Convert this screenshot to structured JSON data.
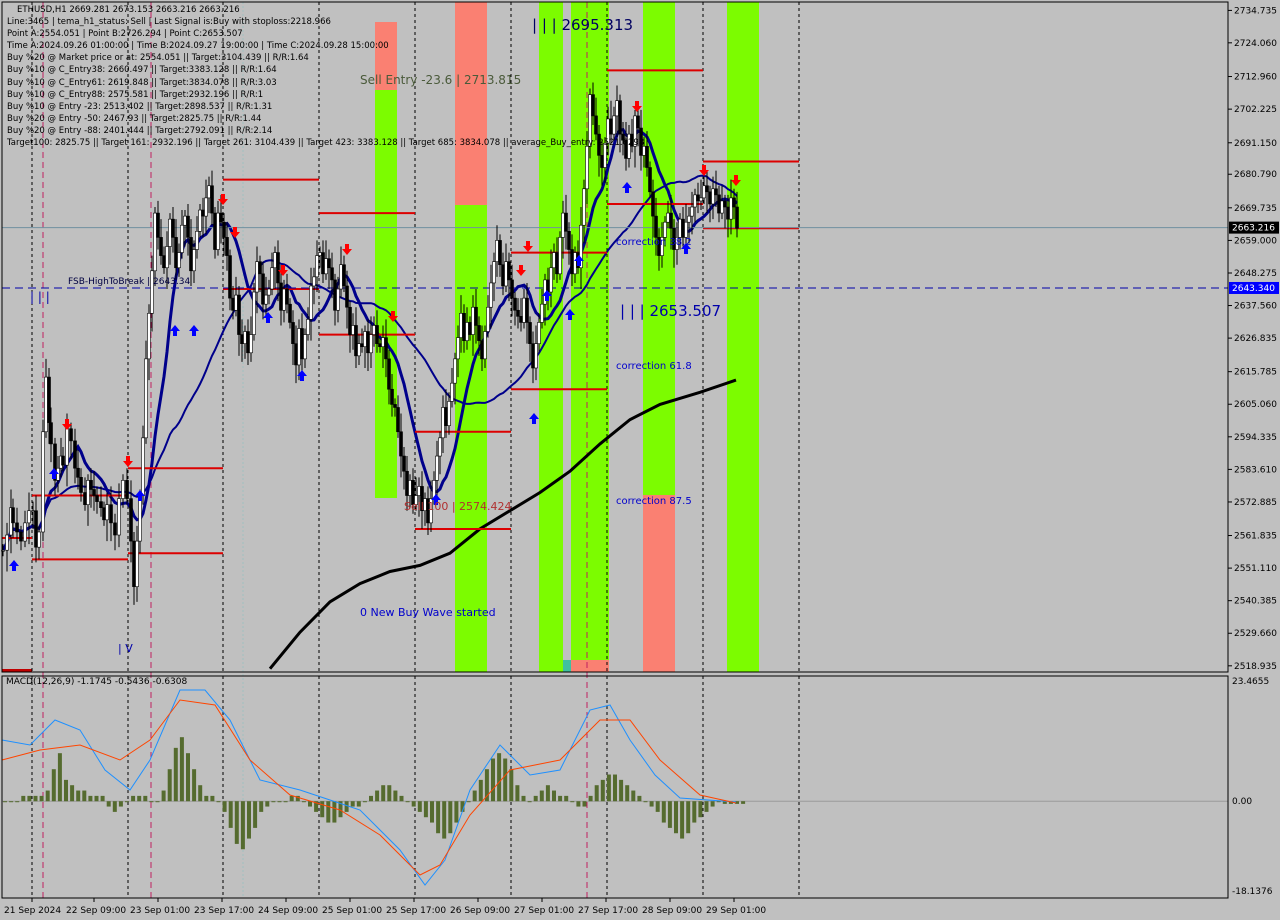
{
  "header": {
    "symbol_line": "ETHUSD,H1  2669.281 2673.153 2663.216 2663.216",
    "info_lines": [
      "Line:3465 | tema_h1_status: Sell | Last Signal is:Buy with stoploss:2218.966",
      "Point A:2554.051 | Point B:2726.294 | Point C:2653.507",
      "Time A:2024.09.26 01:00:00 | Time B:2024.09.27 19:00:00 | Time C:2024.09.28 15:00:00",
      "Buy %20 @ Market price or at: 2554.051 || Target:3104.439 || R/R:1.64",
      "Buy %10 @ C_Entry38: 2660.497 || Target:3383.128 || R/R:1.64",
      "Buy %10 @ C_Entry61: 2619.848 || Target:3834.078 || R/R:3.03",
      "Buy %10 @ C_Entry88: 2575.581 || Target:2932.196 || R/R:1",
      "Buy %10 @ Entry -23: 2513.402 || Target:2898.537 || R/R:1.31",
      "Buy %20 @ Entry -50: 2467.93 || Target:2825.75 || R/R:1.44",
      "Buy %20 @ Entry -88: 2401.444 || Target:2792.091 || R/R:2.14",
      "Target100: 2825.75 || Target 161: 2932.196 || Target 261: 3104.439 || Target 423: 3383.128 || Target 685: 3834.078 || average_Buy_entry: 2521.6298"
    ]
  },
  "labels": {
    "peak": "| | | 2695.313",
    "sell_entry": "Sell Entry -23.6 | 2713.815",
    "point_c": "| | | 2653.507",
    "corr382": "correction 38.2",
    "corr618": "correction 61.8",
    "corr875": "correction 87.5",
    "fsb": "FSB-HighToBreak | 2643.34",
    "buy_entry": "Sell 100 | 2574.424",
    "new_wave": "0 New Buy Wave started",
    "left_marker": "| | |",
    "low_marker": "| V"
  },
  "colors": {
    "bg": "#c0c0c0",
    "candle": "#000000",
    "ma_thick": "#000000",
    "ma_blue": "#00008b",
    "green_band": "#7cfc00",
    "salmon_band": "#fa8072",
    "level_red": "#dc0000",
    "dash_blue": "#0000aa",
    "macd_hist": "#556b2f",
    "macd_main": "#1e90ff",
    "macd_signal": "#ff4500",
    "buy_arrow": "#0000ff",
    "sell_arrow": "#ff0000",
    "current_price_bg": "#000000",
    "fsb_bg": "#0000ff"
  },
  "chart_data": {
    "type": "candlestick",
    "symbol": "ETHUSD",
    "timeframe": "H1",
    "open": 2669.281,
    "high": 2673.153,
    "low": 2663.216,
    "close": 2663.216,
    "ylim": [
      2516.9,
      2737.5
    ],
    "price_ticks": [
      "2734.735",
      "2724.060",
      "2712.960",
      "2702.225",
      "2691.150",
      "2680.790",
      "2669.735",
      "2659.000",
      "2648.275",
      "2637.560",
      "2626.835",
      "2615.785",
      "2605.060",
      "2594.335",
      "2583.610",
      "2572.885",
      "2561.835",
      "2551.110",
      "2540.385",
      "2529.660",
      "2518.935"
    ],
    "current_price": "2663.216",
    "fsb_price": "2643.340",
    "time_labels": [
      "21 Sep 2024",
      "22 Sep 09:00",
      "23 Sep 01:00",
      "23 Sep 17:00",
      "24 Sep 09:00",
      "25 Sep 01:00",
      "25 Sep 17:00",
      "26 Sep 09:00",
      "27 Sep 01:00",
      "27 Sep 17:00",
      "28 Sep 09:00",
      "29 Sep 01:00"
    ],
    "close_path": [
      [
        0,
        2557
      ],
      [
        4,
        2562
      ],
      [
        8,
        2571
      ],
      [
        10,
        2566
      ],
      [
        14,
        2563
      ],
      [
        18,
        2560
      ],
      [
        22,
        2566
      ],
      [
        26,
        2570
      ],
      [
        30,
        2570
      ],
      [
        33,
        2558
      ],
      [
        36,
        2563
      ],
      [
        40,
        2596
      ],
      [
        43,
        2614
      ],
      [
        46,
        2599
      ],
      [
        48,
        2592
      ],
      [
        52,
        2580
      ],
      [
        55,
        2584
      ],
      [
        58,
        2588
      ],
      [
        60,
        2585
      ],
      [
        64,
        2597
      ],
      [
        68,
        2593
      ],
      [
        72,
        2584
      ],
      [
        75,
        2581
      ],
      [
        78,
        2576
      ],
      [
        82,
        2572
      ],
      [
        85,
        2580
      ],
      [
        88,
        2577
      ],
      [
        91,
        2575
      ],
      [
        94,
        2573
      ],
      [
        98,
        2571
      ],
      [
        101,
        2567
      ],
      [
        104,
        2572
      ],
      [
        108,
        2566
      ],
      [
        112,
        2562
      ],
      [
        116,
        2574
      ],
      [
        120,
        2580
      ],
      [
        124,
        2574
      ],
      [
        128,
        2560
      ],
      [
        131,
        2545
      ],
      [
        134,
        2560
      ],
      [
        137,
        2575
      ],
      [
        140,
        2594
      ],
      [
        143,
        2620
      ],
      [
        146,
        2635
      ],
      [
        149,
        2649
      ],
      [
        152,
        2668
      ],
      [
        155,
        2660
      ],
      [
        158,
        2654
      ],
      [
        161,
        2650
      ],
      [
        164,
        2657
      ],
      [
        167,
        2666
      ],
      [
        170,
        2660
      ],
      [
        173,
        2650
      ],
      [
        176,
        2655
      ],
      [
        179,
        2664
      ],
      [
        182,
        2667
      ],
      [
        185,
        2660
      ],
      [
        188,
        2649
      ],
      [
        191,
        2656
      ],
      [
        194,
        2662
      ],
      [
        197,
        2669
      ],
      [
        200,
        2667
      ],
      [
        203,
        2673
      ],
      [
        206,
        2677
      ],
      [
        209,
        2668
      ],
      [
        212,
        2656
      ],
      [
        215,
        2668
      ],
      [
        218,
        2665
      ],
      [
        221,
        2660
      ],
      [
        224,
        2654
      ],
      [
        227,
        2640
      ],
      [
        230,
        2636
      ],
      [
        233,
        2641
      ],
      [
        236,
        2628
      ],
      [
        239,
        2625
      ],
      [
        242,
        2629
      ],
      [
        245,
        2622
      ],
      [
        248,
        2628
      ],
      [
        251,
        2642
      ],
      [
        254,
        2652
      ],
      [
        257,
        2648
      ],
      [
        260,
        2638
      ],
      [
        263,
        2641
      ],
      [
        266,
        2643
      ],
      [
        269,
        2650
      ],
      [
        272,
        2655
      ],
      [
        275,
        2645
      ],
      [
        278,
        2636
      ],
      [
        281,
        2643
      ],
      [
        284,
        2638
      ],
      [
        287,
        2632
      ],
      [
        290,
        2625
      ],
      [
        293,
        2618
      ],
      [
        296,
        2630
      ],
      [
        299,
        2620
      ],
      [
        302,
        2628
      ],
      [
        305,
        2633
      ],
      [
        308,
        2644
      ],
      [
        311,
        2647
      ],
      [
        314,
        2654
      ],
      [
        317,
        2655
      ],
      [
        320,
        2648
      ],
      [
        323,
        2653
      ],
      [
        326,
        2650
      ],
      [
        329,
        2646
      ],
      [
        332,
        2636
      ],
      [
        335,
        2643
      ],
      [
        338,
        2651
      ],
      [
        341,
        2644
      ],
      [
        344,
        2637
      ],
      [
        347,
        2628
      ],
      [
        350,
        2631
      ],
      [
        353,
        2621
      ],
      [
        356,
        2625
      ],
      [
        359,
        2624
      ],
      [
        362,
        2629
      ],
      [
        365,
        2622
      ],
      [
        368,
        2628
      ],
      [
        371,
        2631
      ],
      [
        374,
        2625
      ],
      [
        377,
        2624
      ],
      [
        380,
        2627
      ],
      [
        383,
        2620
      ],
      [
        386,
        2610
      ],
      [
        389,
        2605
      ],
      [
        392,
        2604
      ],
      [
        395,
        2596
      ],
      [
        398,
        2588
      ],
      [
        401,
        2583
      ],
      [
        404,
        2575
      ],
      [
        407,
        2580
      ],
      [
        410,
        2572
      ],
      [
        413,
        2575
      ],
      [
        416,
        2578
      ],
      [
        419,
        2570
      ],
      [
        422,
        2574
      ],
      [
        425,
        2566
      ],
      [
        428,
        2574
      ],
      [
        431,
        2580
      ],
      [
        434,
        2588
      ],
      [
        437,
        2594
      ],
      [
        440,
        2604
      ],
      [
        443,
        2598
      ],
      [
        446,
        2606
      ],
      [
        449,
        2612
      ],
      [
        452,
        2620
      ],
      [
        455,
        2627
      ],
      [
        458,
        2635
      ],
      [
        461,
        2626
      ],
      [
        464,
        2632
      ],
      [
        467,
        2628
      ],
      [
        470,
        2637
      ],
      [
        473,
        2631
      ],
      [
        476,
        2626
      ],
      [
        479,
        2620
      ],
      [
        482,
        2629
      ],
      [
        485,
        2637
      ],
      [
        488,
        2645
      ],
      [
        491,
        2652
      ],
      [
        494,
        2659
      ],
      [
        497,
        2651
      ],
      [
        500,
        2644
      ],
      [
        503,
        2652
      ],
      [
        506,
        2646
      ],
      [
        509,
        2640
      ],
      [
        512,
        2636
      ],
      [
        515,
        2634
      ],
      [
        518,
        2632
      ],
      [
        521,
        2640
      ],
      [
        524,
        2632
      ],
      [
        527,
        2625
      ],
      [
        530,
        2617
      ],
      [
        533,
        2625
      ],
      [
        536,
        2632
      ],
      [
        539,
        2638
      ],
      [
        542,
        2646
      ],
      [
        545,
        2642
      ],
      [
        548,
        2650
      ],
      [
        551,
        2655
      ],
      [
        554,
        2648
      ],
      [
        557,
        2660
      ],
      [
        560,
        2668
      ],
      [
        563,
        2662
      ],
      [
        566,
        2656
      ],
      [
        569,
        2648
      ],
      [
        572,
        2655
      ],
      [
        575,
        2650
      ],
      [
        578,
        2664
      ],
      [
        581,
        2676
      ],
      [
        584,
        2690
      ],
      [
        587,
        2707
      ],
      [
        590,
        2700
      ],
      [
        593,
        2694
      ],
      [
        596,
        2687
      ],
      [
        599,
        2683
      ],
      [
        602,
        2691
      ],
      [
        605,
        2699
      ],
      [
        608,
        2694
      ],
      [
        611,
        2700
      ],
      [
        614,
        2705
      ],
      [
        617,
        2694
      ],
      [
        620,
        2692
      ],
      [
        623,
        2686
      ],
      [
        626,
        2694
      ],
      [
        629,
        2690
      ],
      [
        632,
        2700
      ],
      [
        635,
        2696
      ],
      [
        638,
        2687
      ],
      [
        641,
        2690
      ],
      [
        644,
        2683
      ],
      [
        647,
        2675
      ],
      [
        650,
        2667
      ],
      [
        653,
        2660
      ],
      [
        656,
        2654
      ],
      [
        659,
        2660
      ],
      [
        662,
        2665
      ],
      [
        665,
        2668
      ],
      [
        668,
        2663
      ],
      [
        671,
        2656
      ],
      [
        674,
        2660
      ],
      [
        677,
        2666
      ],
      [
        680,
        2660
      ],
      [
        683,
        2665
      ],
      [
        686,
        2667
      ],
      [
        689,
        2670
      ],
      [
        692,
        2674
      ],
      [
        695,
        2672
      ],
      [
        698,
        2673
      ],
      [
        701,
        2677
      ],
      [
        704,
        2675
      ],
      [
        707,
        2671
      ],
      [
        710,
        2676
      ],
      [
        713,
        2674
      ],
      [
        716,
        2668
      ],
      [
        719,
        2672
      ],
      [
        722,
        2670
      ],
      [
        725,
        2666
      ],
      [
        728,
        2673
      ],
      [
        731,
        2670
      ],
      [
        734,
        2663
      ]
    ],
    "macd": {
      "name": "MACD(12,26,9)",
      "values": [
        -1.1745,
        -0.5436,
        -0.6308
      ],
      "scale_top": "23.4655",
      "scale_zero": "0.00",
      "scale_bottom": "-18.1376",
      "ylim": [
        -18.1376,
        23.4655
      ]
    }
  }
}
